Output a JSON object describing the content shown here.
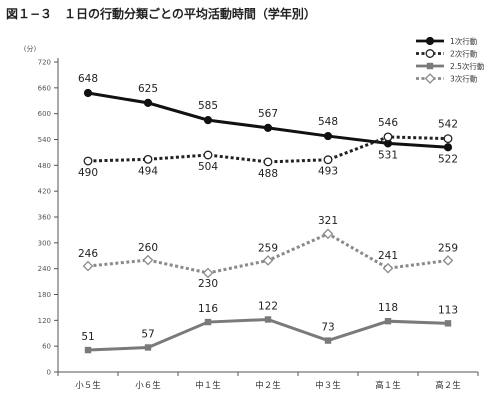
{
  "chart_data": {
    "type": "line",
    "title": "図１−３　１日の行動分類ごとの平均活動時間（学年別）",
    "ylabel": "(分)",
    "xlabel": "",
    "ylim": [
      0,
      720
    ],
    "yticks": [
      0,
      60,
      120,
      180,
      240,
      300,
      360,
      420,
      480,
      540,
      600,
      660,
      720
    ],
    "categories": [
      "小５生",
      "小６生",
      "中１生",
      "中２生",
      "中３生",
      "高１生",
      "高２生"
    ],
    "legend_position": "top-right",
    "grid": false,
    "series": [
      {
        "name": "1次行動",
        "values": [
          648,
          625,
          585,
          567,
          548,
          531,
          522
        ],
        "color": "#111111",
        "style": "solid",
        "marker": "filled-circle"
      },
      {
        "name": "2次行動",
        "values": [
          490,
          494,
          504,
          488,
          493,
          546,
          542
        ],
        "color": "#222222",
        "style": "dotted",
        "marker": "open-circle"
      },
      {
        "name": "2.5次行動",
        "values": [
          51,
          57,
          116,
          122,
          73,
          118,
          113
        ],
        "color": "#7a7a7a",
        "style": "solid",
        "marker": "filled-square"
      },
      {
        "name": "3次行動",
        "values": [
          246,
          260,
          230,
          259,
          321,
          241,
          259
        ],
        "color": "#8a8a8a",
        "style": "dotted",
        "marker": "open-diamond"
      }
    ]
  }
}
